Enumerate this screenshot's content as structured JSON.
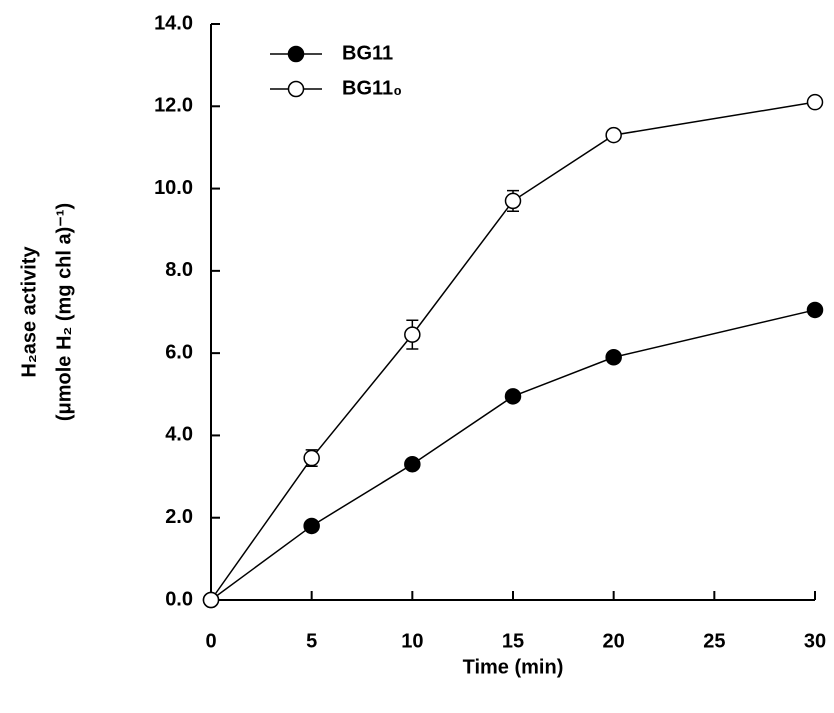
{
  "chart_data": {
    "type": "line",
    "x_label": "Time (min)",
    "y_label": [
      "H₂ase activity",
      "(μmole H₂ (mg chl a)⁻¹)"
    ],
    "x": [
      0,
      5,
      10,
      15,
      20,
      30
    ],
    "series": [
      {
        "name": "BG11",
        "color": "#000000",
        "marker": "filled",
        "values": [
          0,
          1.8,
          3.3,
          4.95,
          5.9,
          7.05
        ],
        "errors": [
          null,
          null,
          null,
          null,
          null,
          null
        ]
      },
      {
        "name": "BG11₀",
        "color": "#000000",
        "marker": "open",
        "values": [
          0,
          3.45,
          6.45,
          9.7,
          11.3,
          12.1
        ],
        "errors": [
          null,
          0.2,
          0.35,
          0.25,
          null,
          null
        ]
      }
    ],
    "xlim": [
      0,
      30
    ],
    "xticks": [
      0,
      5,
      10,
      15,
      20,
      25,
      30
    ],
    "ylim": [
      0,
      14
    ],
    "yticks": [
      {
        "value": 0,
        "label": "0.0"
      },
      {
        "value": 2,
        "label": "2.0"
      },
      {
        "value": 4,
        "label": "4.0"
      },
      {
        "value": 6,
        "label": "6.0"
      },
      {
        "value": 8,
        "label": "8.0"
      },
      {
        "value": 10,
        "label": "10.0"
      },
      {
        "value": 12,
        "label": "12.0"
      },
      {
        "value": 14,
        "label": "14.0"
      }
    ],
    "legend": "upper-left",
    "grid": false
  }
}
